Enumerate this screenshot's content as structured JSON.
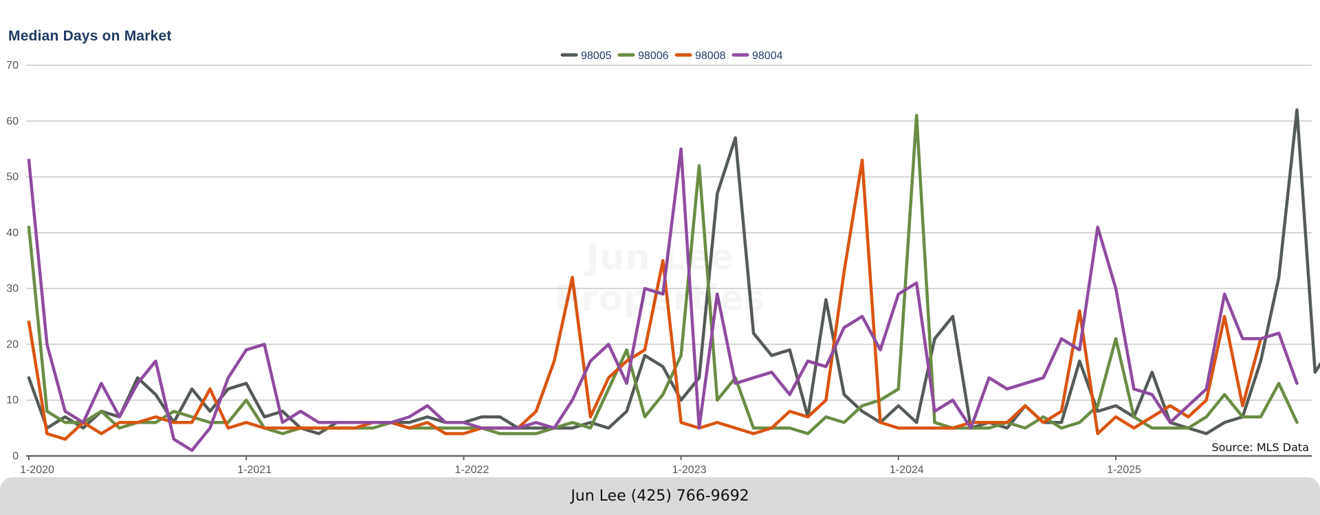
{
  "chart_data": {
    "type": "line",
    "title": "Median Days on Market",
    "xlabel": "",
    "ylabel": "",
    "ylim": [
      0,
      70
    ],
    "y_ticks": [
      0,
      10,
      20,
      30,
      40,
      50,
      60,
      70
    ],
    "x_tick_labels": [
      "1-2020",
      "1-2021",
      "1-2022",
      "1-2023",
      "1-2024",
      "1-2025"
    ],
    "x_start": "1-2020",
    "x_end": "11-2025",
    "grid": true,
    "legend_position": "top-center",
    "series": [
      {
        "name": "98005",
        "color": "#545b57",
        "values": [
          14,
          5,
          7,
          5,
          8,
          7,
          14,
          11,
          6,
          12,
          8,
          12,
          13,
          7,
          8,
          5,
          4,
          6,
          6,
          6,
          6,
          6,
          7,
          6,
          6,
          7,
          7,
          5,
          5,
          5,
          5,
          6,
          5,
          8,
          18,
          16,
          10,
          14,
          47,
          57,
          22,
          18,
          19,
          7,
          28,
          11,
          8,
          6,
          9,
          6,
          21,
          25,
          5,
          6,
          5,
          9,
          6,
          6,
          17,
          8,
          9,
          7,
          15,
          6,
          5,
          4,
          6,
          7,
          17,
          32,
          62,
          15,
          20
        ]
      },
      {
        "name": "98006",
        "color": "#6a8c45",
        "values": [
          41,
          8,
          6,
          6,
          8,
          5,
          6,
          6,
          8,
          7,
          6,
          6,
          10,
          5,
          4,
          5,
          5,
          5,
          5,
          5,
          6,
          5,
          5,
          5,
          5,
          5,
          4,
          4,
          4,
          5,
          6,
          5,
          12,
          19,
          7,
          11,
          18,
          52,
          10,
          14,
          5,
          5,
          5,
          4,
          7,
          6,
          9,
          10,
          12,
          61,
          6,
          5,
          5,
          5,
          6,
          5,
          7,
          5,
          6,
          9,
          21,
          7,
          5,
          5,
          5,
          7,
          11,
          7,
          7,
          13,
          6
        ]
      },
      {
        "name": "98008",
        "color": "#d9540f",
        "values": [
          24,
          4,
          3,
          6,
          4,
          6,
          6,
          7,
          6,
          6,
          12,
          5,
          6,
          5,
          5,
          5,
          5,
          5,
          5,
          6,
          6,
          5,
          6,
          4,
          4,
          5,
          5,
          5,
          8,
          17,
          32,
          7,
          14,
          17,
          19,
          35,
          6,
          5,
          6,
          5,
          4,
          5,
          8,
          7,
          10,
          33,
          53,
          6,
          5,
          5,
          5,
          5,
          6,
          6,
          6,
          9,
          6,
          8,
          26,
          4,
          7,
          5,
          7,
          9,
          7,
          10,
          25,
          9,
          21
        ]
      },
      {
        "name": "98004",
        "color": "#8e4c9e",
        "values": [
          53,
          20,
          8,
          6,
          13,
          7,
          13,
          17,
          3,
          1,
          5,
          14,
          19,
          20,
          6,
          8,
          6,
          6,
          6,
          6,
          6,
          7,
          9,
          6,
          6,
          5,
          5,
          5,
          6,
          5,
          10,
          17,
          20,
          13,
          30,
          29,
          55,
          5,
          29,
          13,
          14,
          15,
          11,
          17,
          16,
          23,
          25,
          19,
          29,
          31,
          8,
          10,
          5,
          14,
          12,
          13,
          14,
          21,
          19,
          41,
          30,
          12,
          11,
          6,
          9,
          12,
          29,
          21,
          21,
          22,
          13
        ]
      }
    ]
  },
  "source_note": "Source: MLS Data",
  "watermark_text": "Jun Lee Properties",
  "footer": {
    "contact": "Jun Lee (425) 766-9692"
  }
}
